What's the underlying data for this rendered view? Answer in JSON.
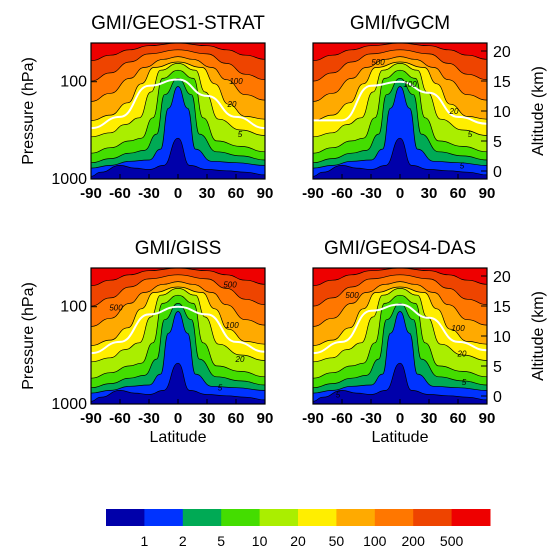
{
  "figure": {
    "colorbar": {
      "labels": [
        "1",
        "2",
        "5",
        "10",
        "20",
        "50",
        "100",
        "200",
        "500"
      ],
      "colors": [
        "#0000aa",
        "#0033ff",
        "#00aa55",
        "#44dd00",
        "#aaee00",
        "#ffee00",
        "#ffaa00",
        "#ff7700",
        "#ee4400",
        "#ee0000"
      ]
    }
  },
  "chart_data": [
    {
      "type": "heatmap",
      "title": "GMI/GEOS1-STRAT",
      "xlabel": "",
      "ylabel": "Pressure (hPa)",
      "y2label": "",
      "xticks": [
        "-90",
        "-60",
        "-30",
        "0",
        "30",
        "60",
        "90"
      ],
      "yticks": [
        "100",
        "1000"
      ],
      "y2ticks": [],
      "contour_labels": [
        "5",
        "20",
        "100"
      ],
      "xlim": [
        -90,
        90
      ],
      "ylim_hPa": [
        1000,
        40
      ],
      "contour_levels": [
        1,
        2,
        5,
        10,
        20,
        50,
        100,
        200,
        500
      ],
      "white_line_hPa": [
        [
          -90,
          300
        ],
        [
          -60,
          230
        ],
        [
          -30,
          110
        ],
        [
          0,
          95
        ],
        [
          30,
          140
        ],
        [
          60,
          230
        ],
        [
          90,
          300
        ]
      ]
    },
    {
      "type": "heatmap",
      "title": "GMI/fvGCM",
      "xlabel": "",
      "ylabel": "",
      "y2label": "Altitude (km)",
      "xticks": [
        "-90",
        "-60",
        "-30",
        "0",
        "30",
        "60",
        "90"
      ],
      "yticks": [],
      "y2ticks": [
        "20",
        "15",
        "10",
        "5",
        "0"
      ],
      "contour_labels": [
        "500",
        "100",
        "20",
        "5",
        "5"
      ],
      "xlim": [
        -90,
        90
      ],
      "ylim_hPa": [
        1000,
        40
      ],
      "contour_levels": [
        1,
        2,
        5,
        10,
        20,
        50,
        100,
        200,
        500
      ],
      "white_line_hPa": [
        [
          -90,
          250
        ],
        [
          -60,
          250
        ],
        [
          -30,
          110
        ],
        [
          0,
          100
        ],
        [
          30,
          130
        ],
        [
          60,
          230
        ],
        [
          90,
          270
        ]
      ]
    },
    {
      "type": "heatmap",
      "title": "GMI/GISS",
      "xlabel": "Latitude",
      "ylabel": "Pressure (hPa)",
      "y2label": "",
      "xticks": [
        "-90",
        "-60",
        "-30",
        "0",
        "30",
        "60",
        "90"
      ],
      "yticks": [
        "100",
        "1000"
      ],
      "y2ticks": [],
      "contour_labels": [
        "500",
        "500",
        "100",
        "20",
        "5"
      ],
      "xlim": [
        -90,
        90
      ],
      "ylim_hPa": [
        1000,
        40
      ],
      "contour_levels": [
        1,
        2,
        5,
        10,
        20,
        50,
        100,
        200,
        500
      ],
      "white_line_hPa": [
        [
          -90,
          300
        ],
        [
          -60,
          230
        ],
        [
          -30,
          120
        ],
        [
          0,
          100
        ],
        [
          30,
          120
        ],
        [
          60,
          230
        ],
        [
          90,
          290
        ]
      ]
    },
    {
      "type": "heatmap",
      "title": "GMI/GEOS4-DAS",
      "xlabel": "Latitude",
      "ylabel": "",
      "y2label": "Altitude (km)",
      "xticks": [
        "-90",
        "-60",
        "-30",
        "0",
        "30",
        "60",
        "90"
      ],
      "yticks": [],
      "y2ticks": [
        "20",
        "15",
        "10",
        "5",
        "0"
      ],
      "contour_labels": [
        "500",
        "100",
        "20",
        "5",
        "5"
      ],
      "xlim": [
        -90,
        90
      ],
      "ylim_hPa": [
        1000,
        40
      ],
      "contour_levels": [
        1,
        2,
        5,
        10,
        20,
        50,
        100,
        200,
        500
      ],
      "white_line_hPa": [
        [
          -90,
          300
        ],
        [
          -60,
          230
        ],
        [
          -30,
          110
        ],
        [
          0,
          95
        ],
        [
          30,
          130
        ],
        [
          60,
          230
        ],
        [
          90,
          280
        ]
      ]
    }
  ]
}
